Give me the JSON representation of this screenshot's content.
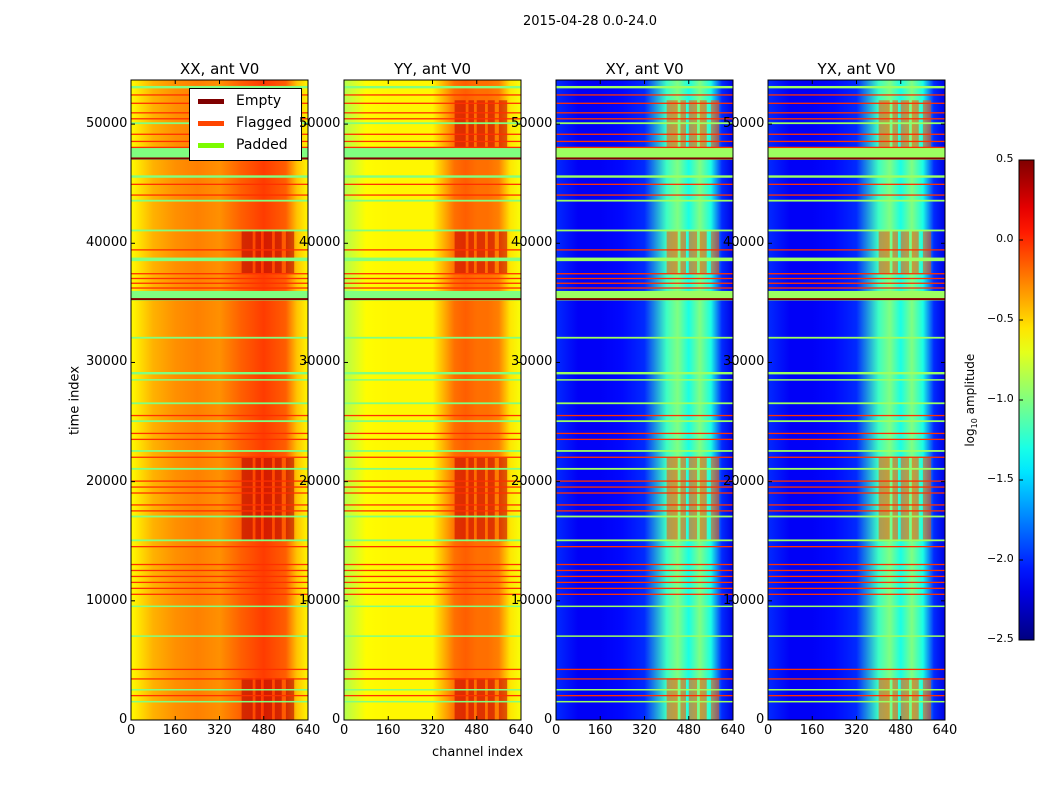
{
  "chart_data": {
    "type": "heatmap",
    "title": "2015-04-28 0.0-24.0",
    "xlabel": "channel index",
    "ylabel": "time index",
    "xlim": [
      0,
      640
    ],
    "ylim": [
      0,
      53700
    ],
    "xticks": [
      "0",
      "160",
      "320",
      "480",
      "640"
    ],
    "yticks": [
      "0",
      "10000",
      "20000",
      "30000",
      "40000",
      "50000"
    ],
    "colorbar": {
      "label_prefix": "log",
      "label_sub": "10",
      "label_suffix": " amplitude",
      "range": [
        -2.5,
        0.5
      ],
      "ticks": [
        "0.5",
        "0.0",
        "−0.5",
        "−1.0",
        "−1.5",
        "−2.0",
        "−2.5"
      ],
      "tick_values": [
        0.5,
        0.0,
        -0.5,
        -1.0,
        -1.5,
        -2.0,
        -2.5
      ],
      "colormap": "jet"
    },
    "legend": {
      "placement": "top-right of first panel",
      "entries": [
        {
          "label": "Empty",
          "color": "#800000"
        },
        {
          "label": "Flagged",
          "color": "#ff4500"
        },
        {
          "label": "Padded",
          "color": "#7cfc00"
        }
      ]
    },
    "channel_bins": [
      0,
      80,
      160,
      240,
      320,
      400,
      440,
      480,
      520,
      560,
      600,
      640
    ],
    "panels": [
      {
        "title": "XX, ant V0",
        "profile": [
          -0.62,
          -0.4,
          -0.3,
          -0.25,
          -0.3,
          -0.15,
          -0.1,
          -0.05,
          -0.1,
          -0.15,
          -0.45,
          -0.6
        ],
        "hot": 0.35
      },
      {
        "title": "YY, ant V0",
        "profile": [
          -0.85,
          -0.62,
          -0.6,
          -0.6,
          -0.6,
          -0.2,
          -0.15,
          -0.2,
          -0.2,
          -0.25,
          -0.55,
          -0.65
        ],
        "hot": 0.3
      },
      {
        "title": "XY, ant V0",
        "profile": [
          -2.0,
          -2.15,
          -2.15,
          -2.1,
          -2.0,
          -1.2,
          -1.0,
          -1.3,
          -1.0,
          -1.3,
          -2.0,
          -2.2
        ],
        "hot": -0.1
      },
      {
        "title": "YX, ant V0",
        "profile": [
          -2.0,
          -2.15,
          -2.15,
          -2.1,
          -2.0,
          -1.2,
          -1.0,
          -1.3,
          -1.0,
          -1.3,
          -2.0,
          -2.2
        ],
        "hot": -0.1
      }
    ],
    "flagged_times": [
      52500,
      51800,
      51000,
      50500,
      49200,
      48600,
      48100,
      45000,
      44100,
      39500,
      37500,
      37100,
      36700,
      36300,
      25600,
      24100,
      23600,
      22100,
      20100,
      19600,
      19100,
      18100,
      17600,
      14600,
      13100,
      12600,
      12100,
      11600,
      11100,
      10600,
      4300,
      3500,
      2100
    ],
    "padded_bands": [
      [
        53000,
        53200
      ],
      [
        50000,
        50150
      ],
      [
        47000,
        48000
      ],
      [
        45500,
        45700
      ],
      [
        43500,
        43650
      ],
      [
        41000,
        41150
      ],
      [
        38500,
        38800
      ],
      [
        35200,
        36000
      ],
      [
        32000,
        32150
      ],
      [
        29000,
        29200
      ],
      [
        28500,
        28600
      ],
      [
        26500,
        26650
      ],
      [
        25000,
        25150
      ],
      [
        22500,
        22650
      ],
      [
        21000,
        21150
      ],
      [
        17000,
        17150
      ],
      [
        15000,
        15150
      ],
      [
        9500,
        9600
      ],
      [
        7000,
        7100
      ],
      [
        2500,
        2600
      ],
      [
        1500,
        1600
      ]
    ],
    "empty_times": [
      47200,
      35400
    ],
    "hot_time_ranges": [
      [
        0,
        3500
      ],
      [
        15000,
        22000
      ],
      [
        37500,
        41000
      ],
      [
        48000,
        52000
      ]
    ]
  }
}
